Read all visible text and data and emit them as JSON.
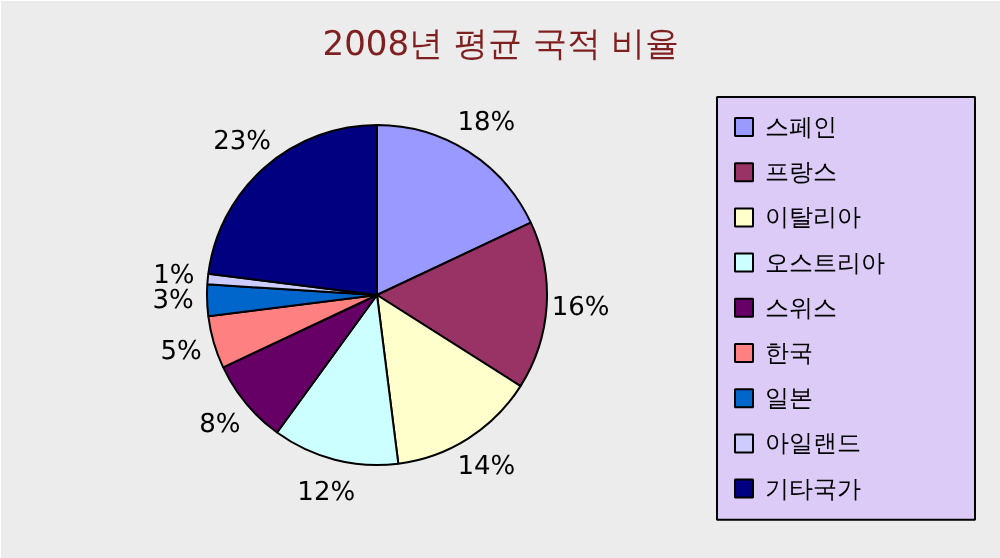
{
  "chart_data": {
    "type": "pie",
    "title": "2008년 평균 국적 비율",
    "categories": [
      "스페인",
      "프랑스",
      "이탈리아",
      "오스트리아",
      "스위스",
      "한국",
      "일본",
      "아일랜드",
      "기타국가"
    ],
    "values": [
      18,
      16,
      14,
      12,
      8,
      5,
      3,
      1,
      23
    ],
    "value_labels": [
      "18%",
      "16%",
      "14%",
      "12%",
      "8%",
      "5%",
      "3%",
      "1%",
      "23%"
    ],
    "colors": [
      "#9999ff",
      "#993366",
      "#ffffcc",
      "#ccffff",
      "#660066",
      "#ff8080",
      "#0066cc",
      "#ccccff",
      "#000080"
    ],
    "legend": "right"
  }
}
